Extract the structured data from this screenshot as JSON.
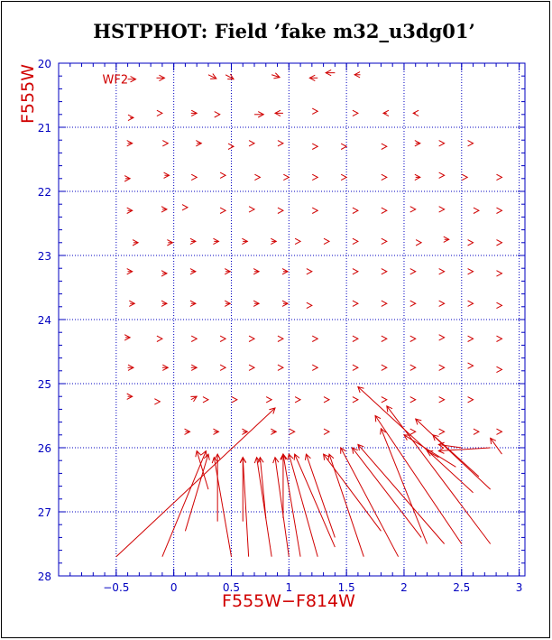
{
  "chart_data": {
    "type": "scatter",
    "title": "HSTPHOT: Field ’fake m32_u3dg01’",
    "xlabel": "F555W−F814W",
    "ylabel": "F555W",
    "xlim": [
      -1.0,
      3.05
    ],
    "ylim": [
      28,
      20
    ],
    "xticks": [
      "−0.5",
      "0",
      "0.5",
      "1",
      "1.5",
      "2",
      "2.5",
      "3"
    ],
    "yticks": [
      "20",
      "21",
      "22",
      "23",
      "24",
      "25",
      "26",
      "27",
      "28"
    ],
    "grid": true,
    "annotation": "WF2",
    "colors": {
      "axis": "#0000c0",
      "grid": "#0000c0",
      "arrows": "#d00000",
      "labels": "#d00000",
      "title": "#000000"
    },
    "series": [
      {
        "marker": "arrow",
        "points": [
          [
            -0.4,
            20.25,
            -0.33,
            20.25
          ],
          [
            -0.15,
            20.23,
            -0.08,
            20.23
          ],
          [
            0.3,
            20.18,
            0.37,
            20.24
          ],
          [
            0.45,
            20.18,
            0.52,
            20.25
          ],
          [
            0.85,
            20.18,
            0.92,
            20.22
          ],
          [
            1.25,
            20.23,
            1.18,
            20.23
          ],
          [
            1.4,
            20.15,
            1.32,
            20.15
          ],
          [
            1.62,
            20.18,
            1.57,
            20.18
          ],
          [
            -0.38,
            20.85,
            -0.35,
            20.85
          ],
          [
            -0.1,
            20.78,
            -0.1,
            20.78
          ],
          [
            0.15,
            20.78,
            0.2,
            20.78
          ],
          [
            0.4,
            20.8,
            0.4,
            20.8
          ],
          [
            0.7,
            20.8,
            0.78,
            20.8
          ],
          [
            0.95,
            20.78,
            0.88,
            20.78
          ],
          [
            1.25,
            20.75,
            1.25,
            20.75
          ],
          [
            1.6,
            20.78,
            1.6,
            20.78
          ],
          [
            1.85,
            20.78,
            1.82,
            20.78
          ],
          [
            2.1,
            20.78,
            2.08,
            20.78
          ],
          [
            -0.4,
            21.25,
            -0.36,
            21.25
          ],
          [
            -0.05,
            21.25,
            -0.05,
            21.25
          ],
          [
            0.2,
            21.25,
            0.24,
            21.25
          ],
          [
            0.5,
            21.3,
            0.52,
            21.3
          ],
          [
            0.7,
            21.25,
            0.7,
            21.25
          ],
          [
            0.95,
            21.25,
            0.95,
            21.25
          ],
          [
            1.25,
            21.3,
            1.25,
            21.3
          ],
          [
            1.5,
            21.3,
            1.5,
            21.3
          ],
          [
            1.85,
            21.3,
            1.85,
            21.3
          ],
          [
            2.1,
            21.25,
            2.14,
            21.25
          ],
          [
            2.35,
            21.25,
            2.35,
            21.25
          ],
          [
            2.6,
            21.25,
            2.6,
            21.25
          ],
          [
            -0.42,
            21.8,
            -0.38,
            21.8
          ],
          [
            -0.08,
            21.75,
            -0.04,
            21.75
          ],
          [
            0.2,
            21.78,
            0.2,
            21.78
          ],
          [
            0.45,
            21.75,
            0.45,
            21.75
          ],
          [
            0.75,
            21.78,
            0.75,
            21.78
          ],
          [
            1.0,
            21.78,
            1.0,
            21.78
          ],
          [
            1.25,
            21.78,
            1.25,
            21.78
          ],
          [
            1.5,
            21.78,
            1.5,
            21.78
          ],
          [
            1.85,
            21.78,
            1.85,
            21.78
          ],
          [
            2.1,
            21.78,
            2.14,
            21.78
          ],
          [
            2.35,
            21.75,
            2.35,
            21.75
          ],
          [
            2.55,
            21.78,
            2.55,
            21.78
          ],
          [
            2.85,
            21.78,
            2.85,
            21.78
          ],
          [
            -0.4,
            22.3,
            -0.36,
            22.3
          ],
          [
            -0.1,
            22.28,
            -0.06,
            22.28
          ],
          [
            0.12,
            22.25,
            0.12,
            22.25
          ],
          [
            0.45,
            22.3,
            0.45,
            22.3
          ],
          [
            0.7,
            22.28,
            0.7,
            22.28
          ],
          [
            0.95,
            22.3,
            0.95,
            22.3
          ],
          [
            1.25,
            22.3,
            1.25,
            22.3
          ],
          [
            1.6,
            22.3,
            1.6,
            22.3
          ],
          [
            1.85,
            22.3,
            1.85,
            22.3
          ],
          [
            2.1,
            22.28,
            2.1,
            22.28
          ],
          [
            2.35,
            22.28,
            2.35,
            22.28
          ],
          [
            2.65,
            22.3,
            2.65,
            22.3
          ],
          [
            2.85,
            22.3,
            2.85,
            22.3
          ],
          [
            -0.35,
            22.8,
            -0.31,
            22.8
          ],
          [
            -0.05,
            22.8,
            -0.01,
            22.8
          ],
          [
            0.15,
            22.78,
            0.19,
            22.78
          ],
          [
            0.35,
            22.78,
            0.39,
            22.78
          ],
          [
            0.6,
            22.78,
            0.64,
            22.78
          ],
          [
            0.85,
            22.78,
            0.89,
            22.78
          ],
          [
            1.1,
            22.78,
            1.1,
            22.78
          ],
          [
            1.35,
            22.78,
            1.35,
            22.78
          ],
          [
            1.6,
            22.78,
            1.6,
            22.78
          ],
          [
            1.85,
            22.78,
            1.85,
            22.78
          ],
          [
            2.15,
            22.8,
            2.15,
            22.8
          ],
          [
            2.35,
            22.75,
            2.39,
            22.75
          ],
          [
            2.6,
            22.8,
            2.6,
            22.8
          ],
          [
            2.85,
            22.8,
            2.85,
            22.8
          ],
          [
            -0.4,
            23.25,
            -0.36,
            23.25
          ],
          [
            -0.1,
            23.28,
            -0.06,
            23.28
          ],
          [
            0.15,
            23.25,
            0.19,
            23.25
          ],
          [
            0.45,
            23.25,
            0.49,
            23.25
          ],
          [
            0.7,
            23.25,
            0.74,
            23.25
          ],
          [
            0.95,
            23.25,
            0.99,
            23.25
          ],
          [
            1.2,
            23.25,
            1.2,
            23.25
          ],
          [
            1.6,
            23.25,
            1.6,
            23.25
          ],
          [
            1.85,
            23.25,
            1.85,
            23.25
          ],
          [
            2.1,
            23.25,
            2.1,
            23.25
          ],
          [
            2.35,
            23.25,
            2.35,
            23.25
          ],
          [
            2.6,
            23.25,
            2.6,
            23.25
          ],
          [
            2.85,
            23.28,
            2.85,
            23.28
          ],
          [
            -0.38,
            23.75,
            -0.34,
            23.75
          ],
          [
            -0.1,
            23.75,
            -0.06,
            23.75
          ],
          [
            0.15,
            23.75,
            0.19,
            23.75
          ],
          [
            0.45,
            23.75,
            0.49,
            23.75
          ],
          [
            0.7,
            23.75,
            0.74,
            23.75
          ],
          [
            0.95,
            23.75,
            0.99,
            23.75
          ],
          [
            1.2,
            23.78,
            1.2,
            23.78
          ],
          [
            1.6,
            23.75,
            1.6,
            23.75
          ],
          [
            1.85,
            23.75,
            1.85,
            23.75
          ],
          [
            2.1,
            23.75,
            2.1,
            23.75
          ],
          [
            2.35,
            23.75,
            2.35,
            23.75
          ],
          [
            2.6,
            23.75,
            2.6,
            23.75
          ],
          [
            2.85,
            23.78,
            2.85,
            23.78
          ],
          [
            -0.42,
            24.28,
            -0.38,
            24.28
          ],
          [
            -0.1,
            24.3,
            -0.1,
            24.3
          ],
          [
            0.2,
            24.3,
            0.2,
            24.3
          ],
          [
            0.45,
            24.3,
            0.45,
            24.3
          ],
          [
            0.7,
            24.3,
            0.7,
            24.3
          ],
          [
            0.95,
            24.3,
            0.95,
            24.3
          ],
          [
            1.25,
            24.3,
            1.25,
            24.3
          ],
          [
            1.6,
            24.3,
            1.6,
            24.3
          ],
          [
            1.85,
            24.3,
            1.85,
            24.3
          ],
          [
            2.1,
            24.3,
            2.1,
            24.3
          ],
          [
            2.35,
            24.28,
            2.35,
            24.28
          ],
          [
            2.6,
            24.3,
            2.6,
            24.3
          ],
          [
            2.85,
            24.3,
            2.85,
            24.3
          ],
          [
            -0.4,
            24.75,
            -0.35,
            24.75
          ],
          [
            -0.1,
            24.75,
            -0.05,
            24.75
          ],
          [
            0.15,
            24.75,
            0.2,
            24.75
          ],
          [
            0.45,
            24.75,
            0.45,
            24.75
          ],
          [
            0.7,
            24.75,
            0.7,
            24.75
          ],
          [
            0.95,
            24.75,
            0.95,
            24.75
          ],
          [
            1.25,
            24.75,
            1.25,
            24.75
          ],
          [
            1.6,
            24.75,
            1.6,
            24.75
          ],
          [
            1.85,
            24.75,
            1.85,
            24.75
          ],
          [
            2.1,
            24.75,
            2.1,
            24.75
          ],
          [
            2.35,
            24.75,
            2.35,
            24.75
          ],
          [
            2.6,
            24.72,
            2.6,
            24.72
          ],
          [
            2.85,
            24.78,
            2.85,
            24.78
          ],
          [
            -0.4,
            25.2,
            -0.36,
            25.2
          ],
          [
            -0.12,
            25.28,
            -0.12,
            25.28
          ],
          [
            0.15,
            25.25,
            0.2,
            25.2
          ],
          [
            0.3,
            25.25,
            0.3,
            25.25
          ],
          [
            0.55,
            25.25,
            0.55,
            25.25
          ],
          [
            0.85,
            25.25,
            0.85,
            25.25
          ],
          [
            1.1,
            25.25,
            1.1,
            25.25
          ],
          [
            1.35,
            25.25,
            1.35,
            25.25
          ],
          [
            1.6,
            25.25,
            1.6,
            25.25
          ],
          [
            1.85,
            25.25,
            1.85,
            25.25
          ],
          [
            2.1,
            25.25,
            2.1,
            25.25
          ],
          [
            2.35,
            25.25,
            2.35,
            25.25
          ],
          [
            2.6,
            25.25,
            2.6,
            25.25
          ],
          [
            0.1,
            25.75,
            0.14,
            25.75
          ],
          [
            0.35,
            25.75,
            0.39,
            25.75
          ],
          [
            0.6,
            25.75,
            0.64,
            25.75
          ],
          [
            0.85,
            25.75,
            0.89,
            25.75
          ],
          [
            1.05,
            25.75,
            1.05,
            25.75
          ],
          [
            1.35,
            25.75,
            1.35,
            25.75
          ],
          [
            2.1,
            25.75,
            2.1,
            25.75
          ],
          [
            2.35,
            25.75,
            2.35,
            25.75
          ],
          [
            2.65,
            25.75,
            2.65,
            25.75
          ],
          [
            2.85,
            25.75,
            2.85,
            25.75
          ],
          [
            -0.5,
            27.7,
            0.88,
            25.38
          ],
          [
            -0.1,
            27.7,
            0.28,
            26.05
          ],
          [
            0.1,
            27.3,
            0.3,
            26.1
          ],
          [
            0.3,
            26.65,
            0.2,
            26.05
          ],
          [
            0.38,
            27.15,
            0.38,
            26.1
          ],
          [
            0.5,
            27.7,
            0.35,
            26.15
          ],
          [
            0.6,
            27.15,
            0.6,
            26.15
          ],
          [
            0.65,
            27.7,
            0.6,
            26.15
          ],
          [
            0.85,
            27.7,
            0.72,
            26.15
          ],
          [
            0.8,
            27.1,
            0.75,
            26.15
          ],
          [
            1.0,
            27.7,
            0.88,
            26.15
          ],
          [
            0.95,
            27.1,
            0.95,
            26.1
          ],
          [
            1.1,
            27.7,
            0.95,
            26.1
          ],
          [
            1.25,
            27.7,
            1.0,
            26.1
          ],
          [
            1.4,
            27.55,
            1.05,
            26.1
          ],
          [
            1.4,
            27.4,
            1.15,
            26.1
          ],
          [
            1.8,
            27.3,
            1.3,
            26.1
          ],
          [
            1.65,
            27.7,
            1.35,
            26.1
          ],
          [
            1.95,
            27.7,
            1.45,
            26.0
          ],
          [
            2.15,
            27.4,
            1.55,
            26.0
          ],
          [
            2.35,
            27.5,
            1.6,
            25.95
          ],
          [
            2.2,
            27.5,
            1.8,
            25.7
          ],
          [
            2.5,
            27.5,
            1.75,
            25.5
          ],
          [
            2.75,
            27.5,
            1.85,
            25.35
          ],
          [
            2.6,
            26.7,
            1.6,
            25.05
          ],
          [
            2.75,
            26.65,
            2.1,
            25.55
          ],
          [
            2.65,
            26.45,
            2.25,
            25.8
          ],
          [
            2.45,
            26.3,
            2.0,
            25.8
          ],
          [
            2.3,
            26.15,
            2.2,
            26.05
          ],
          [
            2.75,
            26.0,
            2.3,
            26.05
          ],
          [
            2.85,
            26.1,
            2.75,
            25.85
          ],
          [
            2.5,
            26.0,
            2.3,
            25.95
          ]
        ]
      }
    ]
  }
}
